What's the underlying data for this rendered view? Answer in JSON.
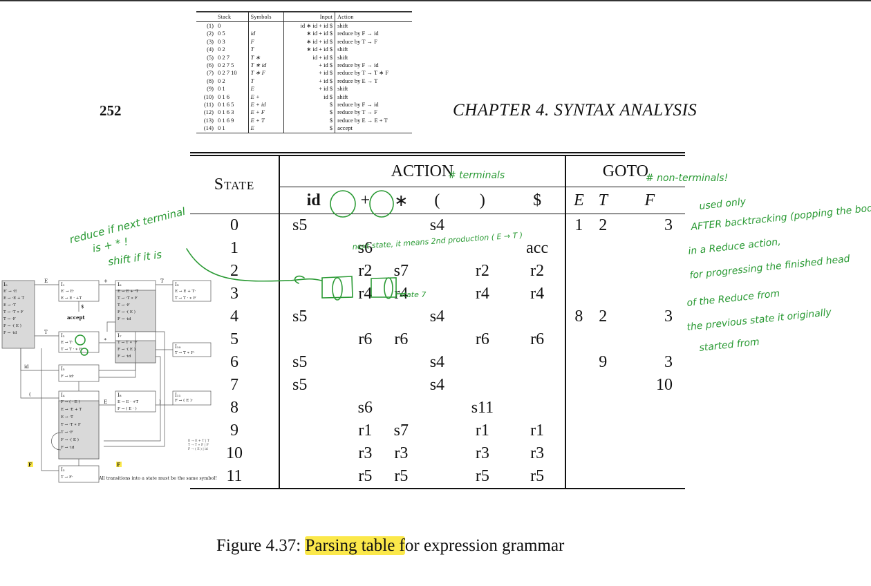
{
  "trace_table": {
    "headers": [
      "Stack",
      "Symbols",
      "Input",
      "Action"
    ],
    "rows": [
      {
        "n": "(1)",
        "stack": "0",
        "symbols": "",
        "input": "id ∗ id + id $",
        "action": "shift"
      },
      {
        "n": "(2)",
        "stack": "0 5",
        "symbols": "id",
        "input": "∗ id + id $",
        "action": "reduce by F → id"
      },
      {
        "n": "(3)",
        "stack": "0 3",
        "symbols": "F",
        "input": "∗ id + id $",
        "action": "reduce by T → F"
      },
      {
        "n": "(4)",
        "stack": "0 2",
        "symbols": "T",
        "input": "∗ id + id $",
        "action": "shift"
      },
      {
        "n": "(5)",
        "stack": "0 2 7",
        "symbols": "T ∗",
        "input": "id + id $",
        "action": "shift"
      },
      {
        "n": "(6)",
        "stack": "0 2 7 5",
        "symbols": "T ∗ id",
        "input": "+ id $",
        "action": "reduce by F → id"
      },
      {
        "n": "(7)",
        "stack": "0 2 7 10",
        "symbols": "T ∗ F",
        "input": "+ id $",
        "action": "reduce by T → T ∗ F"
      },
      {
        "n": "(8)",
        "stack": "0 2",
        "symbols": "T",
        "input": "+ id $",
        "action": "reduce by E → T"
      },
      {
        "n": "(9)",
        "stack": "0 1",
        "symbols": "E",
        "input": "+ id $",
        "action": "shift"
      },
      {
        "n": "(10)",
        "stack": "0 1 6",
        "symbols": "E +",
        "input": "id $",
        "action": "shift"
      },
      {
        "n": "(11)",
        "stack": "0 1 6 5",
        "symbols": "E + id",
        "input": "$",
        "action": "reduce by F → id"
      },
      {
        "n": "(12)",
        "stack": "0 1 6 3",
        "symbols": "E + F",
        "input": "$",
        "action": "reduce by T → F"
      },
      {
        "n": "(13)",
        "stack": "0 1 6 9",
        "symbols": "E + T",
        "input": "$",
        "action": "reduce by E → E + T"
      },
      {
        "n": "(14)",
        "stack": "0 1",
        "symbols": "E",
        "input": "$",
        "action": "accept"
      }
    ]
  },
  "page_number": "252",
  "chapter_title": "CHAPTER 4.  SYNTAX ANALYSIS",
  "parsing_table": {
    "state_header": "State",
    "action_header": "ACTION",
    "goto_header": "GOTO",
    "terminals": [
      "id",
      "+",
      "∗",
      "(",
      ")",
      "$"
    ],
    "nonterminals": [
      "E",
      "T",
      "F"
    ],
    "rows": [
      {
        "state": "0",
        "action": [
          "s5",
          "",
          "",
          "s4",
          "",
          ""
        ],
        "goto": [
          "1",
          "2",
          "3"
        ]
      },
      {
        "state": "1",
        "action": [
          "",
          "s6",
          "",
          "",
          "",
          "acc"
        ],
        "goto": [
          "",
          "",
          ""
        ]
      },
      {
        "state": "2",
        "action": [
          "",
          "r2",
          "s7",
          "",
          "r2",
          "r2"
        ],
        "goto": [
          "",
          "",
          ""
        ]
      },
      {
        "state": "3",
        "action": [
          "",
          "r4",
          "r4",
          "",
          "r4",
          "r4"
        ],
        "goto": [
          "",
          "",
          ""
        ]
      },
      {
        "state": "4",
        "action": [
          "s5",
          "",
          "",
          "s4",
          "",
          ""
        ],
        "goto": [
          "8",
          "2",
          "3"
        ]
      },
      {
        "state": "5",
        "action": [
          "",
          "r6",
          "r6",
          "",
          "r6",
          "r6"
        ],
        "goto": [
          "",
          "",
          ""
        ]
      },
      {
        "state": "6",
        "action": [
          "s5",
          "",
          "",
          "s4",
          "",
          ""
        ],
        "goto": [
          "",
          "9",
          "3"
        ]
      },
      {
        "state": "7",
        "action": [
          "s5",
          "",
          "",
          "s4",
          "",
          ""
        ],
        "goto": [
          "",
          "",
          "10"
        ]
      },
      {
        "state": "8",
        "action": [
          "",
          "s6",
          "",
          "",
          "s11",
          ""
        ],
        "goto": [
          "",
          "",
          ""
        ]
      },
      {
        "state": "9",
        "action": [
          "",
          "r1",
          "s7",
          "",
          "r1",
          "r1"
        ],
        "goto": [
          "",
          "",
          ""
        ]
      },
      {
        "state": "10",
        "action": [
          "",
          "r3",
          "r3",
          "",
          "r3",
          "r3"
        ],
        "goto": [
          "",
          "",
          ""
        ]
      },
      {
        "state": "11",
        "action": [
          "",
          "r5",
          "r5",
          "",
          "r5",
          "r5"
        ],
        "goto": [
          "",
          "",
          ""
        ]
      }
    ]
  },
  "caption": {
    "prefix": "Figure 4.37: ",
    "highlight": "Parsing table f",
    "rest": "or expression grammar"
  },
  "automaton": {
    "states": [
      {
        "name": "I0",
        "items": [
          "E′ → ·E",
          "E → ·E + T",
          "E → ·T",
          "T → ·T ∗ F",
          "T → ·F",
          "F → ·( E )",
          "F → ·id"
        ]
      },
      {
        "name": "I1",
        "items": [
          "E′ → E·",
          "E → E · +T"
        ]
      },
      {
        "name": "I6",
        "items": [
          "E → E + ·T",
          "T → ·T ∗ F",
          "T → ·F",
          "F → ·( E )",
          "F → ·id"
        ]
      },
      {
        "name": "I9",
        "items": [
          "E → E + T·",
          "T → T · ∗ F"
        ]
      },
      {
        "name": "I2",
        "items": [
          "E → T·",
          "T → T · ∗ F"
        ]
      },
      {
        "name": "I7",
        "items": [
          "T → T ∗ ·F",
          "F → ·( E )",
          "F → ·id"
        ]
      },
      {
        "name": "I10",
        "items": [
          "T → T ∗ F·"
        ]
      },
      {
        "name": "I5",
        "items": [
          "F → id·"
        ]
      },
      {
        "name": "I4",
        "items": [
          "F → ( · E )",
          "E → ·E + T",
          "E → ·T",
          "T → ·T ∗ F",
          "T → ·F",
          "F → ·( E )",
          "F → ·id"
        ]
      },
      {
        "name": "I8",
        "items": [
          "E → E · +T",
          "F → ( E · )"
        ]
      },
      {
        "name": "I11",
        "items": [
          "F → ( E )·"
        ]
      },
      {
        "name": "I3",
        "items": [
          "T → F·"
        ]
      }
    ],
    "edge_labels": {
      "E": "E",
      "T": "T",
      "F": "F",
      "id": "id",
      "plus": "+",
      "star": "∗",
      "lparen": "(",
      "rparen": ")",
      "dollar": "$"
    },
    "accept": "accept",
    "grammar": [
      "E → E + T | T",
      "T → T ∗ F | F",
      "F → ( E ) | id"
    ],
    "note": "All transitions into a state must be the same symbol!"
  },
  "annotations": {
    "reduce_note_1": "reduce if next terminal",
    "reduce_note_2": "is + * !",
    "reduce_note_3": "shift if it is",
    "action_note": "# terminals",
    "goto_note": "# non-terminals!",
    "s6_note": "next state, it means 2nd production ( E → T )",
    "s7_note": "state 7",
    "right_note": [
      "used only",
      "AFTER backtracking (popping the body)",
      "in a Reduce action,",
      "for progressing the finished head",
      "of the Reduce from",
      "the previous state it originally",
      "started from"
    ],
    "color": "#2a9a34"
  },
  "colors": {
    "highlight": "#fbe84a",
    "ink": "#2a9a34"
  }
}
